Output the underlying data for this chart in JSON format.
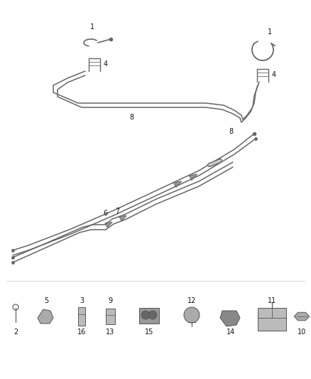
{
  "bg_color": "#ffffff",
  "fig_width": 4.38,
  "fig_height": 5.33,
  "dpi": 100,
  "line_color": "#666666",
  "part_color": "#555555",
  "label_color": "#111111",
  "label_fontsize": 7.0
}
